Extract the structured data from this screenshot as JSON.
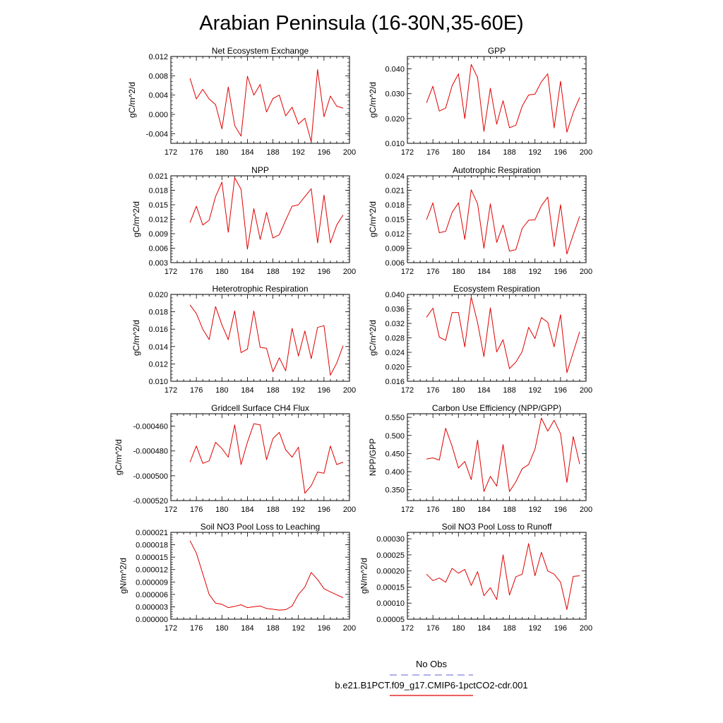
{
  "figure": {
    "title": "Arabian Peninsula (16-30N,35-60E)",
    "legend": {
      "entries": [
        {
          "label": "No Obs",
          "color": "#8080e0",
          "style": "dashed"
        },
        {
          "label": "b.e21.B1PCT.f09_g17.CMIP6-1pctCO2-cdr.001",
          "color": "#e00000",
          "style": "solid"
        }
      ]
    }
  },
  "chart_data": [
    {
      "type": "line",
      "title": "Net Ecosystem Exchange",
      "ylabel": "gC/m^2/d",
      "xlim": [
        172,
        200
      ],
      "xticks": [
        "172",
        "176",
        "180",
        "184",
        "188",
        "192",
        "196",
        "200"
      ],
      "ylim": [
        -0.006,
        0.012
      ],
      "yticks": [
        -0.004,
        0.0,
        0.004,
        0.008,
        0.012
      ],
      "ytick_labels": [
        "-0.004",
        "0.000",
        "0.004",
        "0.008",
        "0.012"
      ],
      "series": [
        {
          "color": "#e00000",
          "x": [
            175,
            176,
            177,
            178,
            179,
            180,
            181,
            182,
            183,
            184,
            185,
            186,
            187,
            188,
            189,
            190,
            191,
            192,
            193,
            194,
            195,
            196,
            197,
            198,
            199
          ],
          "y": [
            0.0075,
            0.0032,
            0.0052,
            0.0032,
            0.002,
            -0.003,
            0.0057,
            -0.0023,
            -0.0045,
            0.0079,
            0.004,
            0.0062,
            0.0005,
            0.0033,
            0.004,
            -0.0003,
            0.0015,
            -0.002,
            -0.0008,
            -0.0057,
            0.0093,
            -0.0005,
            0.0038,
            0.0017,
            0.0013
          ]
        }
      ]
    },
    {
      "type": "line",
      "title": "GPP",
      "ylabel": "gC/m^2/d",
      "xlim": [
        172,
        200
      ],
      "xticks": [
        "172",
        "176",
        "180",
        "184",
        "188",
        "192",
        "196",
        "200"
      ],
      "ylim": [
        0.01,
        0.045
      ],
      "yticks": [
        0.01,
        0.02,
        0.03,
        0.04
      ],
      "ytick_labels": [
        "0.010",
        "0.020",
        "0.030",
        "0.040"
      ],
      "series": [
        {
          "color": "#e00000",
          "x": [
            175,
            176,
            177,
            178,
            179,
            180,
            181,
            182,
            183,
            184,
            185,
            186,
            187,
            188,
            189,
            190,
            191,
            192,
            193,
            194,
            195,
            196,
            197,
            198,
            199
          ],
          "y": [
            0.0263,
            0.033,
            0.023,
            0.0242,
            0.0332,
            0.038,
            0.02,
            0.0418,
            0.0365,
            0.0148,
            0.0322,
            0.0177,
            0.0272,
            0.0163,
            0.0173,
            0.025,
            0.0295,
            0.0298,
            0.0348,
            0.038,
            0.0162,
            0.035,
            0.0145,
            0.0225,
            0.0285
          ]
        }
      ]
    },
    {
      "type": "line",
      "title": "NPP",
      "ylabel": "gC/m^2/d",
      "xlim": [
        172,
        200
      ],
      "xticks": [
        "172",
        "176",
        "180",
        "184",
        "188",
        "192",
        "196",
        "200"
      ],
      "ylim": [
        0.003,
        0.021
      ],
      "yticks": [
        0.003,
        0.006,
        0.009,
        0.012,
        0.015,
        0.018,
        0.021
      ],
      "ytick_labels": [
        "0.003",
        "0.006",
        "0.009",
        "0.012",
        "0.015",
        "0.018",
        "0.021"
      ],
      "series": [
        {
          "color": "#e00000",
          "x": [
            175,
            176,
            177,
            178,
            179,
            180,
            181,
            182,
            183,
            184,
            185,
            186,
            187,
            188,
            189,
            190,
            191,
            192,
            193,
            194,
            195,
            196,
            197,
            198,
            199
          ],
          "y": [
            0.0113,
            0.0147,
            0.0108,
            0.0118,
            0.0167,
            0.0197,
            0.0093,
            0.0206,
            0.0182,
            0.0058,
            0.0142,
            0.0078,
            0.0134,
            0.0081,
            0.0088,
            0.0118,
            0.0147,
            0.015,
            0.0167,
            0.0183,
            0.0071,
            0.017,
            0.0071,
            0.0108,
            0.0129
          ]
        }
      ]
    },
    {
      "type": "line",
      "title": "Autotrophic Respiration",
      "ylabel": "gC/m^2/d",
      "xlim": [
        172,
        200
      ],
      "xticks": [
        "172",
        "176",
        "180",
        "184",
        "188",
        "192",
        "196",
        "200"
      ],
      "ylim": [
        0.006,
        0.024
      ],
      "yticks": [
        0.006,
        0.009,
        0.012,
        0.015,
        0.018,
        0.021,
        0.024
      ],
      "ytick_labels": [
        "0.006",
        "0.009",
        "0.012",
        "0.015",
        "0.018",
        "0.021",
        "0.024"
      ],
      "series": [
        {
          "color": "#e00000",
          "x": [
            175,
            176,
            177,
            178,
            179,
            180,
            181,
            182,
            183,
            184,
            185,
            186,
            187,
            188,
            189,
            190,
            191,
            192,
            193,
            194,
            195,
            196,
            197,
            198,
            199
          ],
          "y": [
            0.0149,
            0.0184,
            0.0122,
            0.0125,
            0.0164,
            0.0184,
            0.0108,
            0.0211,
            0.0182,
            0.009,
            0.0182,
            0.0102,
            0.0138,
            0.0084,
            0.0087,
            0.0131,
            0.0148,
            0.0149,
            0.0178,
            0.0196,
            0.0093,
            0.018,
            0.0078,
            0.0118,
            0.0156
          ]
        }
      ]
    },
    {
      "type": "line",
      "title": "Heterotrophic Respiration",
      "ylabel": "gC/m^2/d",
      "xlim": [
        172,
        200
      ],
      "xticks": [
        "172",
        "176",
        "180",
        "184",
        "188",
        "192",
        "196",
        "200"
      ],
      "ylim": [
        0.01,
        0.02
      ],
      "yticks": [
        0.01,
        0.012,
        0.014,
        0.016,
        0.018,
        0.02
      ],
      "ytick_labels": [
        "0.010",
        "0.012",
        "0.014",
        "0.016",
        "0.018",
        "0.020"
      ],
      "series": [
        {
          "color": "#e00000",
          "x": [
            175,
            176,
            177,
            178,
            179,
            180,
            181,
            182,
            183,
            184,
            185,
            186,
            187,
            188,
            189,
            190,
            191,
            192,
            193,
            194,
            195,
            196,
            197,
            198,
            199
          ],
          "y": [
            0.0188,
            0.0178,
            0.016,
            0.0148,
            0.0186,
            0.0165,
            0.0148,
            0.0181,
            0.0133,
            0.0137,
            0.0181,
            0.0139,
            0.0138,
            0.0111,
            0.0127,
            0.0112,
            0.0161,
            0.0129,
            0.0158,
            0.0126,
            0.0162,
            0.0164,
            0.0107,
            0.0121,
            0.0141
          ]
        }
      ]
    },
    {
      "type": "line",
      "title": "Ecosystem Respiration",
      "ylabel": "gC/m^2/d",
      "xlim": [
        172,
        200
      ],
      "xticks": [
        "172",
        "176",
        "180",
        "184",
        "188",
        "192",
        "196",
        "200"
      ],
      "ylim": [
        0.016,
        0.04
      ],
      "yticks": [
        0.016,
        0.02,
        0.024,
        0.028,
        0.032,
        0.036,
        0.04
      ],
      "ytick_labels": [
        "0.016",
        "0.020",
        "0.024",
        "0.028",
        "0.032",
        "0.036",
        "0.040"
      ],
      "series": [
        {
          "color": "#e00000",
          "x": [
            175,
            176,
            177,
            178,
            179,
            180,
            181,
            182,
            183,
            184,
            185,
            186,
            187,
            188,
            189,
            190,
            191,
            192,
            193,
            194,
            195,
            196,
            197,
            198,
            199
          ],
          "y": [
            0.0337,
            0.0362,
            0.0282,
            0.0273,
            0.035,
            0.035,
            0.0255,
            0.0393,
            0.0322,
            0.0228,
            0.0363,
            0.0241,
            0.0275,
            0.0195,
            0.0213,
            0.0242,
            0.0309,
            0.0278,
            0.0336,
            0.0323,
            0.0255,
            0.0344,
            0.0184,
            0.024,
            0.0297
          ]
        }
      ]
    },
    {
      "type": "line",
      "title": "Gridcell Surface CH4 Flux",
      "ylabel": "gC/m^2/d",
      "xlim": [
        172,
        200
      ],
      "xticks": [
        "172",
        "176",
        "180",
        "184",
        "188",
        "192",
        "196",
        "200"
      ],
      "ylim": [
        -0.00052,
        -0.00045
      ],
      "yticks": [
        -0.00052,
        -0.0005,
        -0.00048,
        -0.00046
      ],
      "ytick_labels": [
        "-0.000520",
        "-0.000500",
        "-0.000480",
        "-0.000460"
      ],
      "series": [
        {
          "color": "#e00000",
          "x": [
            175,
            176,
            177,
            178,
            179,
            180,
            181,
            182,
            183,
            184,
            185,
            186,
            187,
            188,
            189,
            190,
            191,
            192,
            193,
            194,
            195,
            196,
            197,
            198,
            199
          ],
          "y": [
            -0.000489,
            -0.000476,
            -0.00049,
            -0.000488,
            -0.000473,
            -0.000478,
            -0.000485,
            -0.000459,
            -0.000491,
            -0.000473,
            -0.000458,
            -0.000459,
            -0.000487,
            -0.00047,
            -0.000465,
            -0.000479,
            -0.000485,
            -0.000477,
            -0.000514,
            -0.000508,
            -0.000497,
            -0.000498,
            -0.000476,
            -0.000491,
            -0.000489
          ]
        }
      ]
    },
    {
      "type": "line",
      "title": "Carbon Use Efficiency (NPP/GPP)",
      "ylabel": "NPP/GPP",
      "xlim": [
        172,
        200
      ],
      "xticks": [
        "172",
        "176",
        "180",
        "184",
        "188",
        "192",
        "196",
        "200"
      ],
      "ylim": [
        0.32,
        0.56
      ],
      "yticks": [
        0.35,
        0.4,
        0.45,
        0.5,
        0.55
      ],
      "ytick_labels": [
        "0.350",
        "0.400",
        "0.450",
        "0.500",
        "0.550"
      ],
      "series": [
        {
          "color": "#e00000",
          "x": [
            175,
            176,
            177,
            178,
            179,
            180,
            181,
            182,
            183,
            184,
            185,
            186,
            187,
            188,
            189,
            190,
            191,
            192,
            193,
            194,
            195,
            196,
            197,
            198,
            199
          ],
          "y": [
            0.435,
            0.438,
            0.432,
            0.52,
            0.47,
            0.41,
            0.428,
            0.378,
            0.487,
            0.345,
            0.387,
            0.36,
            0.475,
            0.345,
            0.372,
            0.408,
            0.42,
            0.462,
            0.548,
            0.512,
            0.542,
            0.505,
            0.37,
            0.497,
            0.421
          ]
        }
      ]
    },
    {
      "type": "line",
      "title": "Soil NO3 Pool Loss to Leaching",
      "ylabel": "gN/m^2/d",
      "xlim": [
        172,
        200
      ],
      "xticks": [
        "172",
        "176",
        "180",
        "184",
        "188",
        "192",
        "196",
        "200"
      ],
      "ylim": [
        0.0,
        2.1e-05
      ],
      "yticks": [
        0.0,
        3e-06,
        6e-06,
        9e-06,
        1.2e-05,
        1.5e-05,
        1.8e-05,
        2.1e-05
      ],
      "ytick_labels": [
        "0.000000",
        "0.000003",
        "0.000006",
        "0.000009",
        "0.000012",
        "0.000015",
        "0.000018",
        "0.000021"
      ],
      "series": [
        {
          "color": "#e00000",
          "x": [
            175,
            176,
            177,
            178,
            179,
            180,
            181,
            182,
            183,
            184,
            185,
            186,
            187,
            188,
            189,
            190,
            191,
            192,
            193,
            194,
            195,
            196,
            197,
            198,
            199
          ],
          "y": [
            1.9e-05,
            1.6e-05,
            1.1e-05,
            6e-06,
            3.9e-06,
            3.6e-06,
            2.8e-06,
            3.1e-06,
            3.5e-06,
            2.8e-06,
            3e-06,
            3.2e-06,
            2.6e-06,
            2.4e-06,
            2.2e-06,
            2.3e-06,
            3.2e-06,
            6e-06,
            7.8e-06,
            1.13e-05,
            9.6e-06,
            7.4e-06,
            6.6e-06,
            5.9e-06,
            5.2e-06
          ]
        }
      ]
    },
    {
      "type": "line",
      "title": "Soil NO3 Pool Loss to Runoff",
      "ylabel": "gN/m^2/d",
      "xlim": [
        172,
        200
      ],
      "xticks": [
        "172",
        "176",
        "180",
        "184",
        "188",
        "192",
        "196",
        "200"
      ],
      "ylim": [
        5e-05,
        0.00032
      ],
      "yticks": [
        5e-05,
        0.0001,
        0.00015,
        0.0002,
        0.00025,
        0.0003
      ],
      "ytick_labels": [
        "0.00005",
        "0.00010",
        "0.00015",
        "0.00020",
        "0.00025",
        "0.00030"
      ],
      "series": [
        {
          "color": "#e00000",
          "x": [
            175,
            176,
            177,
            178,
            179,
            180,
            181,
            182,
            183,
            184,
            185,
            186,
            187,
            188,
            189,
            190,
            191,
            192,
            193,
            194,
            195,
            196,
            197,
            198,
            199
          ],
          "y": [
            0.00019,
            0.00017,
            0.000178,
            0.000165,
            0.000208,
            0.000193,
            0.000205,
            0.000155,
            0.000198,
            0.000123,
            0.000148,
            0.000111,
            0.00025,
            0.000125,
            0.000182,
            0.00019,
            0.000285,
            0.000185,
            0.000258,
            0.0002,
            0.00019,
            0.000165,
            8e-05,
            0.000183,
            0.000185
          ]
        }
      ]
    }
  ]
}
